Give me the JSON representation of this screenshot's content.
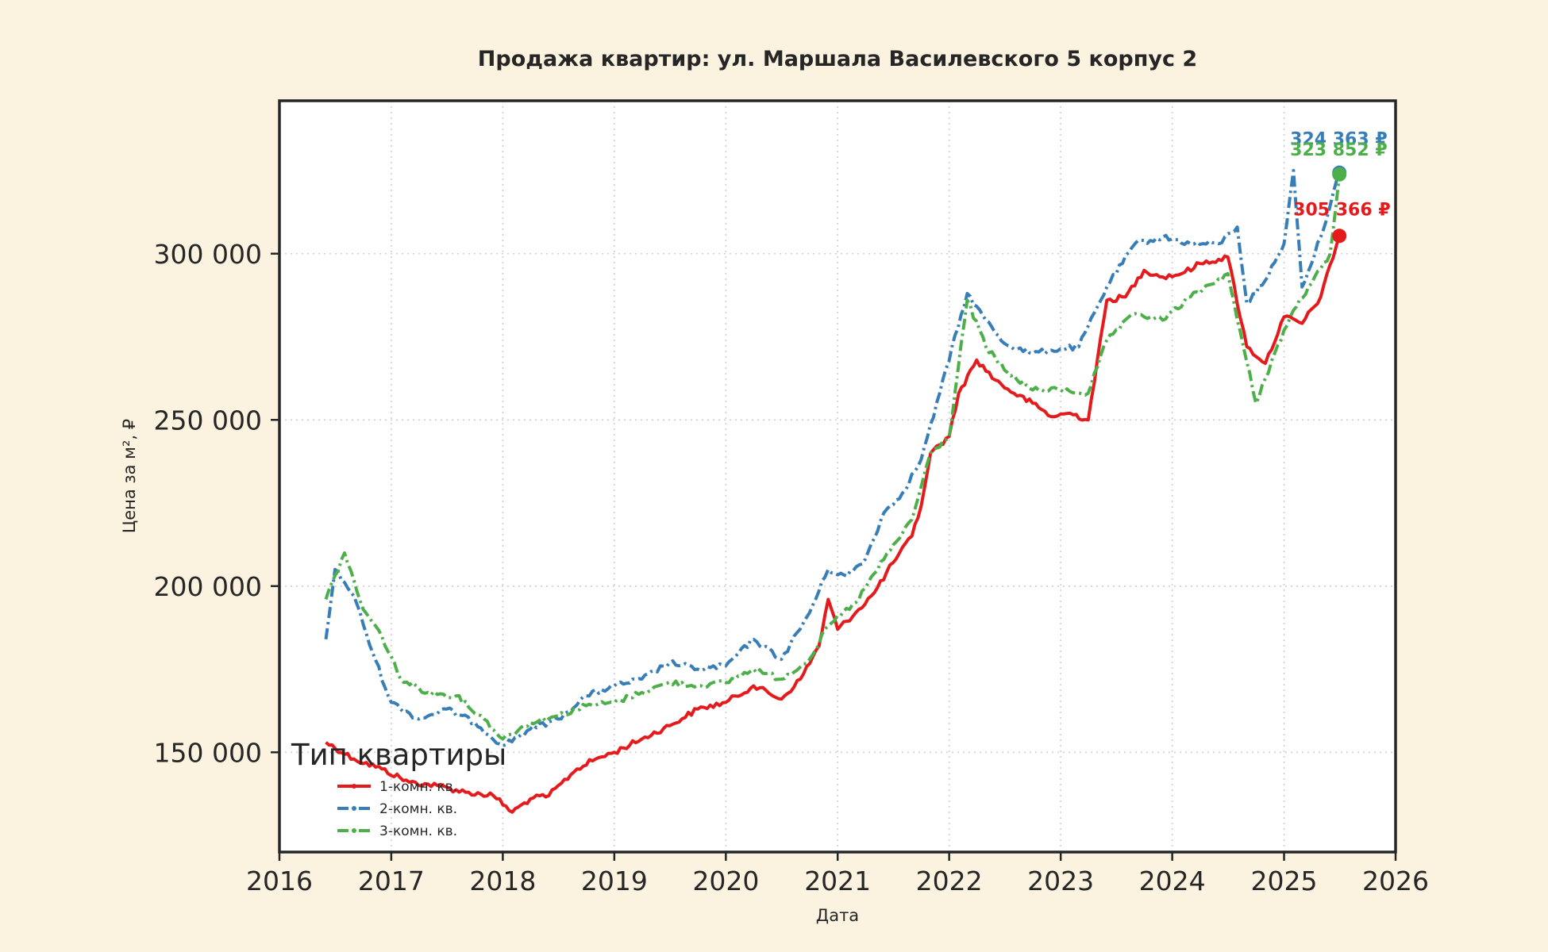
{
  "chart_data": {
    "type": "line",
    "title": "Продажа квартир: ул. Маршала Василевского 5 корпус 2",
    "xlabel": "Дата",
    "ylabel": "Цена за м², ₽",
    "xlim": [
      "2016-01-01",
      "2026-01-01"
    ],
    "ylim": [
      120000,
      346000
    ],
    "x_ticks": [
      "2016",
      "2017",
      "2018",
      "2019",
      "2020",
      "2021",
      "2022",
      "2023",
      "2024",
      "2025",
      "2026"
    ],
    "y_ticks": [
      150000,
      200000,
      250000,
      300000
    ],
    "y_tick_labels": [
      "150 000",
      "200 000",
      "250 000",
      "300 000"
    ],
    "grid": true,
    "legend": {
      "title": "Тип квартиры",
      "position": "lower-left"
    },
    "series": [
      {
        "name": "1-комн. кв.",
        "color": "#e41a1c",
        "dash": "solid",
        "last_value": 305366,
        "last_label": "305 366 ₽",
        "points": [
          [
            "2016-06-01",
            153000
          ],
          [
            "2016-09-01",
            148000
          ],
          [
            "2016-12-01",
            145000
          ],
          [
            "2017-03-01",
            141000
          ],
          [
            "2017-06-01",
            140000
          ],
          [
            "2017-09-01",
            138000
          ],
          [
            "2017-12-01",
            137000
          ],
          [
            "2018-02-01",
            132000
          ],
          [
            "2018-04-01",
            136000
          ],
          [
            "2018-06-01",
            137000
          ],
          [
            "2018-09-01",
            145000
          ],
          [
            "2018-11-01",
            148000
          ],
          [
            "2019-01-01",
            150000
          ],
          [
            "2019-04-01",
            154000
          ],
          [
            "2019-07-01",
            158000
          ],
          [
            "2019-10-01",
            163000
          ],
          [
            "2020-01-01",
            165000
          ],
          [
            "2020-04-01",
            170000
          ],
          [
            "2020-07-01",
            166000
          ],
          [
            "2020-09-01",
            172000
          ],
          [
            "2020-11-01",
            182000
          ],
          [
            "2020-12-01",
            196000
          ],
          [
            "2021-01-01",
            187000
          ],
          [
            "2021-03-01",
            192000
          ],
          [
            "2021-05-01",
            198000
          ],
          [
            "2021-07-01",
            207000
          ],
          [
            "2021-09-01",
            215000
          ],
          [
            "2021-10-01",
            224000
          ],
          [
            "2021-11-01",
            240000
          ],
          [
            "2022-01-01",
            245000
          ],
          [
            "2022-02-01",
            258000
          ],
          [
            "2022-04-01",
            268000
          ],
          [
            "2022-06-01",
            262000
          ],
          [
            "2022-08-01",
            258000
          ],
          [
            "2022-10-01",
            255000
          ],
          [
            "2022-12-01",
            251000
          ],
          [
            "2023-02-01",
            252000
          ],
          [
            "2023-04-01",
            250000
          ],
          [
            "2023-06-01",
            286000
          ],
          [
            "2023-08-01",
            287000
          ],
          [
            "2023-10-01",
            295000
          ],
          [
            "2023-12-01",
            293000
          ],
          [
            "2024-02-01",
            294000
          ],
          [
            "2024-04-01",
            297000
          ],
          [
            "2024-07-01",
            299000
          ],
          [
            "2024-09-01",
            272000
          ],
          [
            "2024-11-01",
            267000
          ],
          [
            "2025-01-01",
            281000
          ],
          [
            "2025-03-01",
            279000
          ],
          [
            "2025-05-01",
            287000
          ],
          [
            "2025-07-01",
            305366
          ]
        ]
      },
      {
        "name": "2-комн. кв.",
        "color": "#377eb8",
        "dash": "dashdot",
        "last_value": 324363,
        "last_label": "324 363 ₽",
        "points": [
          [
            "2016-06-01",
            184000
          ],
          [
            "2016-07-01",
            205000
          ],
          [
            "2016-09-01",
            197000
          ],
          [
            "2016-11-01",
            180000
          ],
          [
            "2017-01-01",
            165000
          ],
          [
            "2017-04-01",
            160000
          ],
          [
            "2017-07-01",
            163000
          ],
          [
            "2017-10-01",
            159000
          ],
          [
            "2018-01-01",
            152000
          ],
          [
            "2018-04-01",
            157000
          ],
          [
            "2018-07-01",
            160000
          ],
          [
            "2018-10-01",
            167000
          ],
          [
            "2019-01-01",
            170000
          ],
          [
            "2019-04-01",
            172000
          ],
          [
            "2019-07-01",
            177000
          ],
          [
            "2019-10-01",
            175000
          ],
          [
            "2020-01-01",
            176000
          ],
          [
            "2020-04-01",
            184000
          ],
          [
            "2020-07-01",
            178000
          ],
          [
            "2020-10-01",
            192000
          ],
          [
            "2020-12-01",
            205000
          ],
          [
            "2021-02-01",
            203000
          ],
          [
            "2021-04-01",
            208000
          ],
          [
            "2021-06-01",
            222000
          ],
          [
            "2021-08-01",
            228000
          ],
          [
            "2021-10-01",
            238000
          ],
          [
            "2021-12-01",
            258000
          ],
          [
            "2022-03-01",
            288000
          ],
          [
            "2022-05-01",
            280000
          ],
          [
            "2022-07-01",
            273000
          ],
          [
            "2022-10-01",
            270000
          ],
          [
            "2022-12-01",
            271000
          ],
          [
            "2023-03-01",
            272000
          ],
          [
            "2023-06-01",
            290000
          ],
          [
            "2023-09-01",
            303000
          ],
          [
            "2023-12-01",
            305000
          ],
          [
            "2024-03-01",
            303000
          ],
          [
            "2024-06-01",
            303000
          ],
          [
            "2024-08-01",
            308000
          ],
          [
            "2024-09-01",
            285000
          ],
          [
            "2024-11-01",
            292000
          ],
          [
            "2025-01-01",
            303000
          ],
          [
            "2025-02-01",
            325000
          ],
          [
            "2025-03-01",
            290000
          ],
          [
            "2025-05-01",
            305000
          ],
          [
            "2025-07-01",
            324363
          ]
        ]
      },
      {
        "name": "3-комн. кв.",
        "color": "#4daf4a",
        "dash": "dashdot",
        "last_value": 323852,
        "last_label": "323 852 ₽",
        "points": [
          [
            "2016-06-01",
            196000
          ],
          [
            "2016-08-01",
            210000
          ],
          [
            "2016-10-01",
            193000
          ],
          [
            "2016-12-01",
            185000
          ],
          [
            "2017-02-01",
            172000
          ],
          [
            "2017-05-01",
            168000
          ],
          [
            "2017-08-01",
            167000
          ],
          [
            "2017-11-01",
            160000
          ],
          [
            "2018-01-01",
            154000
          ],
          [
            "2018-04-01",
            159000
          ],
          [
            "2018-07-01",
            161000
          ],
          [
            "2018-10-01",
            164000
          ],
          [
            "2019-01-01",
            165000
          ],
          [
            "2019-04-01",
            168000
          ],
          [
            "2019-07-01",
            171000
          ],
          [
            "2019-10-01",
            170000
          ],
          [
            "2020-01-01",
            171000
          ],
          [
            "2020-04-01",
            175000
          ],
          [
            "2020-07-01",
            172000
          ],
          [
            "2020-10-01",
            178000
          ],
          [
            "2020-12-01",
            188000
          ],
          [
            "2021-03-01",
            195000
          ],
          [
            "2021-06-01",
            208000
          ],
          [
            "2021-09-01",
            220000
          ],
          [
            "2021-11-01",
            240000
          ],
          [
            "2022-01-01",
            245000
          ],
          [
            "2022-03-01",
            286000
          ],
          [
            "2022-05-01",
            272000
          ],
          [
            "2022-07-01",
            265000
          ],
          [
            "2022-10-01",
            259000
          ],
          [
            "2023-01-01",
            259000
          ],
          [
            "2023-04-01",
            258000
          ],
          [
            "2023-06-01",
            274000
          ],
          [
            "2023-09-01",
            282000
          ],
          [
            "2023-12-01",
            280000
          ],
          [
            "2024-03-01",
            287000
          ],
          [
            "2024-07-01",
            294000
          ],
          [
            "2024-08-01",
            280000
          ],
          [
            "2024-10-01",
            255000
          ],
          [
            "2024-12-01",
            270000
          ],
          [
            "2025-02-01",
            283000
          ],
          [
            "2025-04-01",
            291000
          ],
          [
            "2025-06-01",
            300000
          ],
          [
            "2025-07-01",
            323852
          ]
        ]
      }
    ]
  }
}
